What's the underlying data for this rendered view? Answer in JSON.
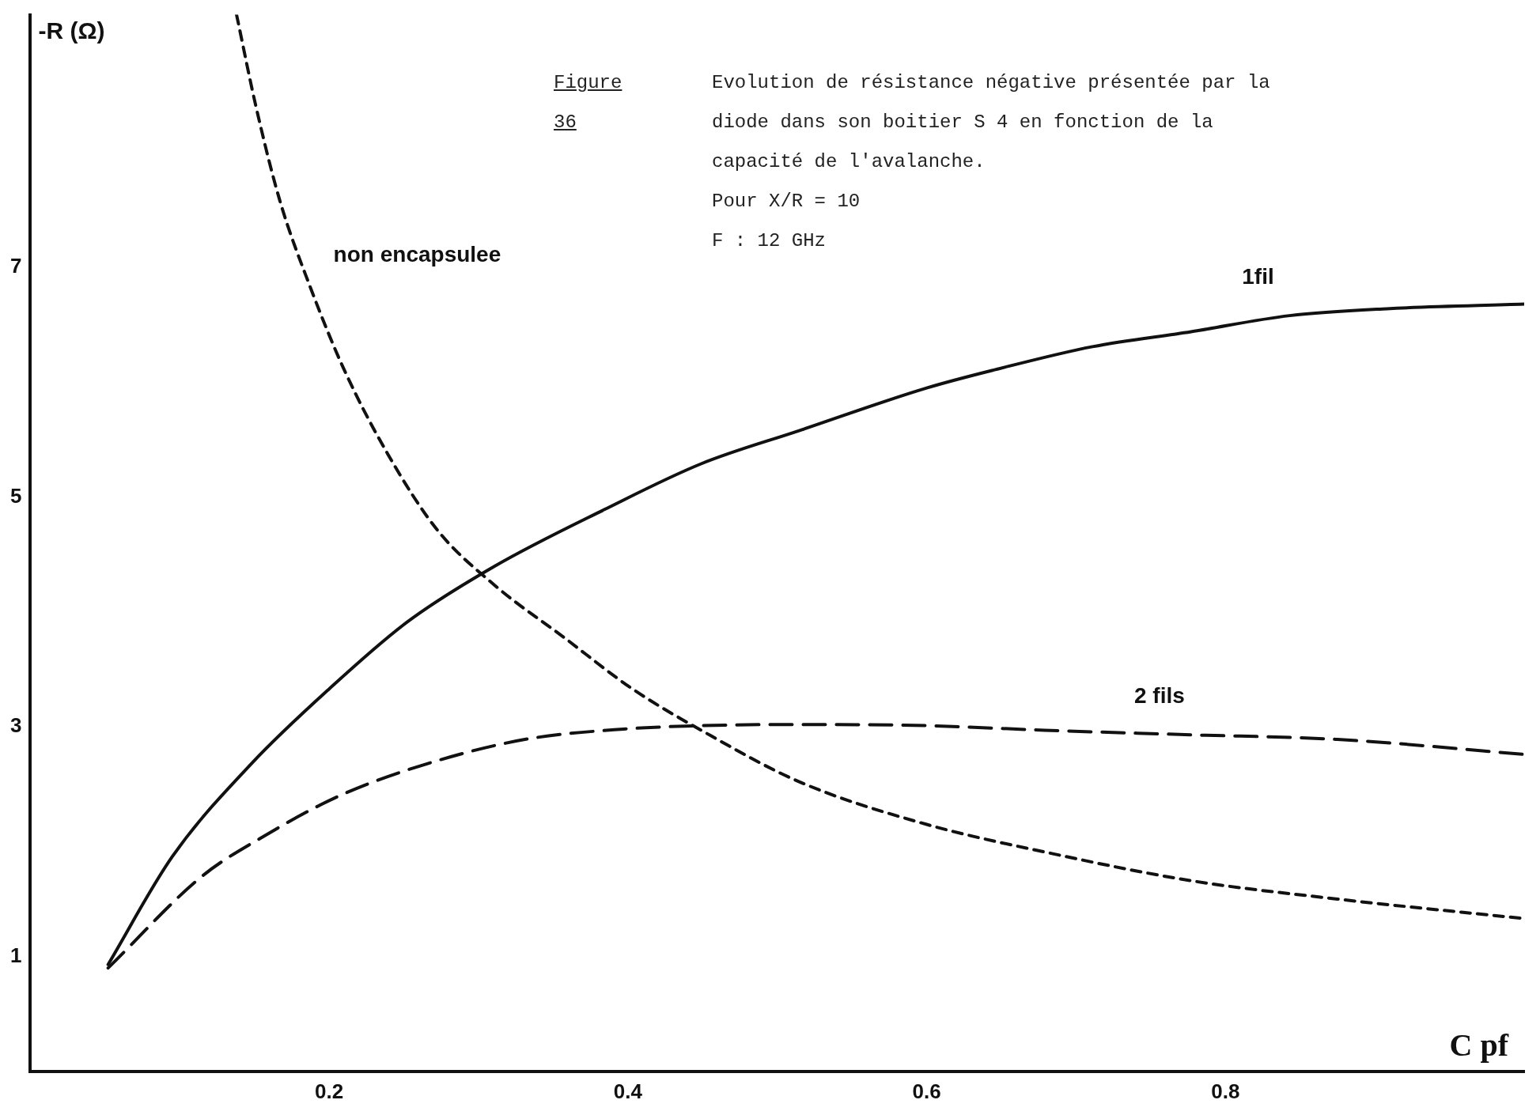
{
  "chart_data": {
    "type": "line",
    "title": "Evolution de résistance négative présentée par la diode dans son boitier S 4 en fonction de la capacité de l'avalanche.",
    "xlabel": "C pf",
    "ylabel": "-R (Ω)",
    "annotations": [
      "Figure 36",
      "Pour X/R = 10",
      "F : 12 GHz"
    ],
    "xlim": [
      0,
      1.0
    ],
    "xticks": [
      0.2,
      0.4,
      0.6,
      0.8
    ],
    "ylim": [
      0,
      9.2
    ],
    "yticks": [
      1,
      3,
      5,
      7
    ],
    "grid": false,
    "legend": false,
    "marker": "none",
    "series": [
      {
        "name": "1fil",
        "color": "#111111",
        "line_style": "solid",
        "x": [
          0.052,
          0.095,
          0.148,
          0.2,
          0.252,
          0.311,
          0.384,
          0.449,
          0.515,
          0.6,
          0.646,
          0.711,
          0.777,
          0.843,
          0.908,
          1.0
        ],
        "values": [
          0.93,
          1.87,
          2.68,
          3.33,
          3.91,
          4.4,
          4.89,
          5.29,
          5.58,
          5.95,
          6.11,
          6.31,
          6.44,
          6.58,
          6.64,
          6.68
        ]
      },
      {
        "name": "2 fils",
        "color": "#111111",
        "line_style": "dashed",
        "x": [
          0.052,
          0.115,
          0.154,
          0.207,
          0.266,
          0.331,
          0.397,
          0.449,
          0.515,
          0.6,
          0.679,
          0.777,
          0.875,
          1.0
        ],
        "values": [
          0.9,
          1.7,
          2.03,
          2.4,
          2.68,
          2.89,
          2.98,
          3.01,
          3.02,
          3.01,
          2.97,
          2.93,
          2.89,
          2.76
        ]
      },
      {
        "name": "non encapsulee",
        "color": "#111111",
        "line_style": "dotted",
        "x": [
          0.138,
          0.151,
          0.167,
          0.187,
          0.21,
          0.239,
          0.272,
          0.311,
          0.357,
          0.403,
          0.449,
          0.515,
          0.6,
          0.679,
          0.777,
          0.875,
          1.0
        ],
        "values": [
          9.2,
          8.4,
          7.58,
          6.84,
          6.11,
          5.38,
          4.72,
          4.23,
          3.78,
          3.33,
          2.97,
          2.52,
          2.15,
          1.91,
          1.66,
          1.5,
          1.33
        ]
      }
    ]
  }
}
